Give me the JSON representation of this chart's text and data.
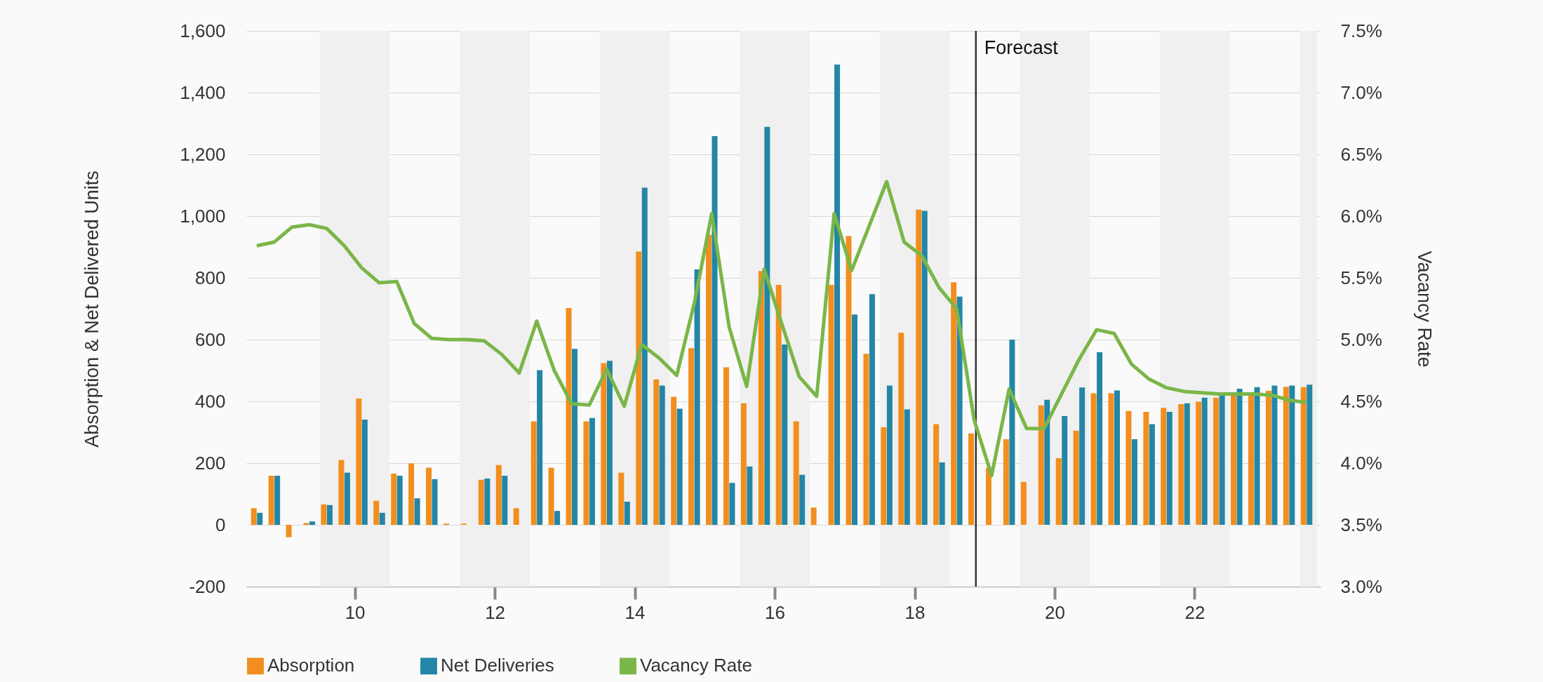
{
  "chart_data": {
    "type": "bar",
    "ylabel": "Absorption & Net Delivered Units",
    "y2label": "Vacancy Rate",
    "x": [
      8.6,
      8.85,
      9.1,
      9.35,
      9.6,
      9.85,
      10.1,
      10.35,
      10.6,
      10.85,
      11.1,
      11.35,
      11.6,
      11.85,
      12.1,
      12.35,
      12.6,
      12.85,
      13.1,
      13.35,
      13.6,
      13.85,
      14.1,
      14.35,
      14.6,
      14.85,
      15.1,
      15.35,
      15.6,
      15.85,
      16.1,
      16.35,
      16.6,
      16.85,
      17.1,
      17.35,
      17.6,
      17.85,
      18.1,
      18.35,
      18.6,
      18.85,
      19.1,
      19.35,
      19.6,
      19.85,
      20.1,
      20.35,
      20.6,
      20.85,
      21.1,
      21.35,
      21.6,
      21.85,
      22.1,
      22.35,
      22.6,
      22.85,
      23.1,
      23.35,
      23.6
    ],
    "series": [
      {
        "name": "Absorption",
        "type": "bar",
        "color": "#f28e1e",
        "values": [
          54,
          159,
          -40,
          6,
          66,
          210,
          409,
          78,
          166,
          199,
          185,
          4,
          4,
          146,
          194,
          54,
          335,
          185,
          702,
          335,
          524,
          169,
          885,
          471,
          415,
          572,
          940,
          510,
          394,
          822,
          777,
          335,
          56,
          777,
          935,
          554,
          316,
          622,
          1021,
          326,
          786,
          296,
          185,
          277,
          139,
          387,
          216,
          305,
          426,
          426,
          369,
          366,
          379,
          391,
          399,
          412,
          419,
          422,
          434,
          447,
          446
        ]
      },
      {
        "name": "Net Deliveries",
        "type": "bar",
        "color": "#2386a6",
        "values": [
          39,
          159,
          0,
          11,
          64,
          169,
          341,
          39,
          159,
          86,
          148,
          0,
          0,
          150,
          159,
          0,
          501,
          45,
          570,
          346,
          531,
          75,
          1092,
          451,
          376,
          827,
          1259,
          136,
          189,
          1289,
          584,
          162,
          0,
          1491,
          681,
          747,
          451,
          374,
          1017,
          202,
          739,
          0,
          0,
          600,
          0,
          405,
          352,
          445,
          559,
          435,
          277,
          326,
          366,
          394,
          412,
          429,
          441,
          446,
          451,
          451,
          454
        ]
      },
      {
        "name": "Vacancy Rate",
        "type": "line",
        "axis": "y2",
        "color": "#7ab648",
        "values": [
          5.76,
          5.79,
          5.91,
          5.93,
          5.9,
          5.76,
          5.58,
          5.46,
          5.47,
          5.13,
          5.01,
          5.0,
          5.0,
          4.99,
          4.88,
          4.73,
          5.15,
          4.75,
          4.48,
          4.47,
          4.76,
          4.46,
          4.96,
          4.85,
          4.71,
          5.29,
          6.02,
          5.1,
          4.62,
          5.57,
          5.13,
          4.7,
          4.54,
          6.02,
          5.56,
          5.92,
          6.28,
          5.79,
          5.68,
          5.42,
          5.25,
          4.35,
          3.9,
          4.6,
          4.28,
          4.28,
          4.56,
          4.84,
          5.08,
          5.05,
          4.8,
          4.68,
          4.61,
          4.58,
          4.57,
          4.56,
          4.56,
          4.56,
          4.55,
          4.51,
          4.49
        ]
      }
    ],
    "xlim": [
      8.5,
      23.75
    ],
    "xticks": [
      10,
      12,
      14,
      16,
      18,
      20,
      22
    ],
    "ylim": [
      -200,
      1600
    ],
    "yticks": [
      -200,
      0,
      200,
      400,
      600,
      800,
      {
        "value": 1000,
        "label": "1,000"
      },
      {
        "value": 1200,
        "label": "1,200"
      },
      {
        "value": 1400,
        "label": "1,400"
      },
      {
        "value": 1600,
        "label": "1,600"
      }
    ],
    "y2lim": [
      3,
      7.5
    ],
    "y2ticks": [
      {
        "value": 3,
        "label": "3.0%"
      },
      {
        "value": 3.5,
        "label": "3.5%"
      },
      {
        "value": 4,
        "label": "4.0%"
      },
      {
        "value": 4.5,
        "label": "4.5%"
      },
      {
        "value": 5,
        "label": "5.0%"
      },
      {
        "value": 5.5,
        "label": "5.5%"
      },
      {
        "value": 6,
        "label": "6.0%"
      },
      {
        "value": 6.5,
        "label": "6.5%"
      },
      {
        "value": 7,
        "label": "7.0%"
      },
      {
        "value": 7.5,
        "label": "7.5%"
      }
    ],
    "bands": [
      {
        "axis": "x",
        "from": 9.5,
        "to": 10.5,
        "color": "#f0f0f0"
      },
      {
        "axis": "x",
        "from": 11.5,
        "to": 12.5,
        "color": "#f0f0f0"
      },
      {
        "axis": "x",
        "from": 13.5,
        "to": 14.5,
        "color": "#f0f0f0"
      },
      {
        "axis": "x",
        "from": 15.5,
        "to": 16.5,
        "color": "#f0f0f0"
      },
      {
        "axis": "x",
        "from": 17.5,
        "to": 18.5,
        "color": "#f0f0f0"
      },
      {
        "axis": "x",
        "from": 19.5,
        "to": 20.5,
        "color": "#f0f0f0"
      },
      {
        "axis": "x",
        "from": 21.5,
        "to": 22.5,
        "color": "#f0f0f0"
      },
      {
        "axis": "x",
        "from": 23.5,
        "to": 23.75,
        "color": "#f0f0f0"
      }
    ],
    "ref_lines": [
      {
        "axis": "x",
        "value": 18.875,
        "label": "Forecast",
        "color": "#333333"
      }
    ],
    "grid": "y",
    "legend": "bottom",
    "marker": "none",
    "line_style": "solid"
  }
}
